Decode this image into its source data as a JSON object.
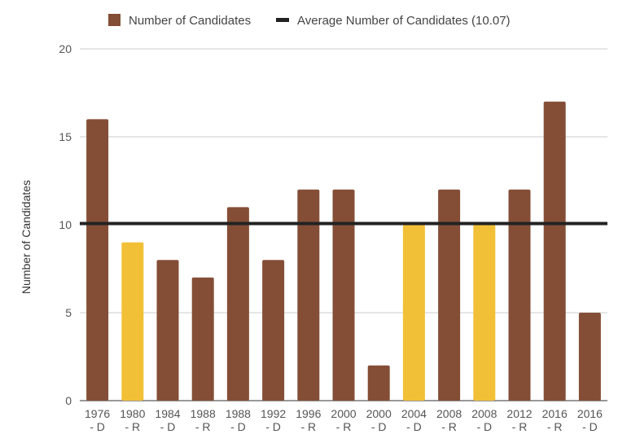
{
  "chart_data": {
    "type": "bar",
    "title": "",
    "xlabel": "",
    "ylabel": "Number of Candidates",
    "ylim": [
      0,
      20
    ],
    "yticks": [
      0,
      5,
      10,
      15,
      20
    ],
    "grid": true,
    "legend_position": "top",
    "legend": [
      {
        "label": "Number of Candidates",
        "kind": "swatch",
        "color": "#844e36"
      },
      {
        "label": "Average Number of Candidates (10.07)",
        "kind": "line",
        "color": "#222222"
      }
    ],
    "categories": [
      [
        "1976",
        "- D"
      ],
      [
        "1980",
        "- R"
      ],
      [
        "1984",
        "- D"
      ],
      [
        "1988",
        "- R"
      ],
      [
        "1988",
        "- D"
      ],
      [
        "1992",
        "- D"
      ],
      [
        "1996",
        "- R"
      ],
      [
        "2000",
        "- R"
      ],
      [
        "2000",
        "- D"
      ],
      [
        "2004",
        "- D"
      ],
      [
        "2008",
        "- R"
      ],
      [
        "2008",
        "- D"
      ],
      [
        "2012",
        "- R"
      ],
      [
        "2016",
        "- R"
      ],
      [
        "2016",
        "- D"
      ]
    ],
    "values": [
      16,
      9,
      8,
      7,
      11,
      8,
      12,
      12,
      2,
      10,
      12,
      10,
      12,
      17,
      5
    ],
    "bar_colors": [
      "#844e36",
      "#f2c036",
      "#844e36",
      "#844e36",
      "#844e36",
      "#844e36",
      "#844e36",
      "#844e36",
      "#844e36",
      "#f2c036",
      "#844e36",
      "#f2c036",
      "#844e36",
      "#844e36",
      "#844e36"
    ],
    "average": 10.07,
    "colors": {
      "bar": "#844e36",
      "highlight": "#f2c036",
      "average_line": "#222222",
      "grid": "#cccccc"
    }
  }
}
